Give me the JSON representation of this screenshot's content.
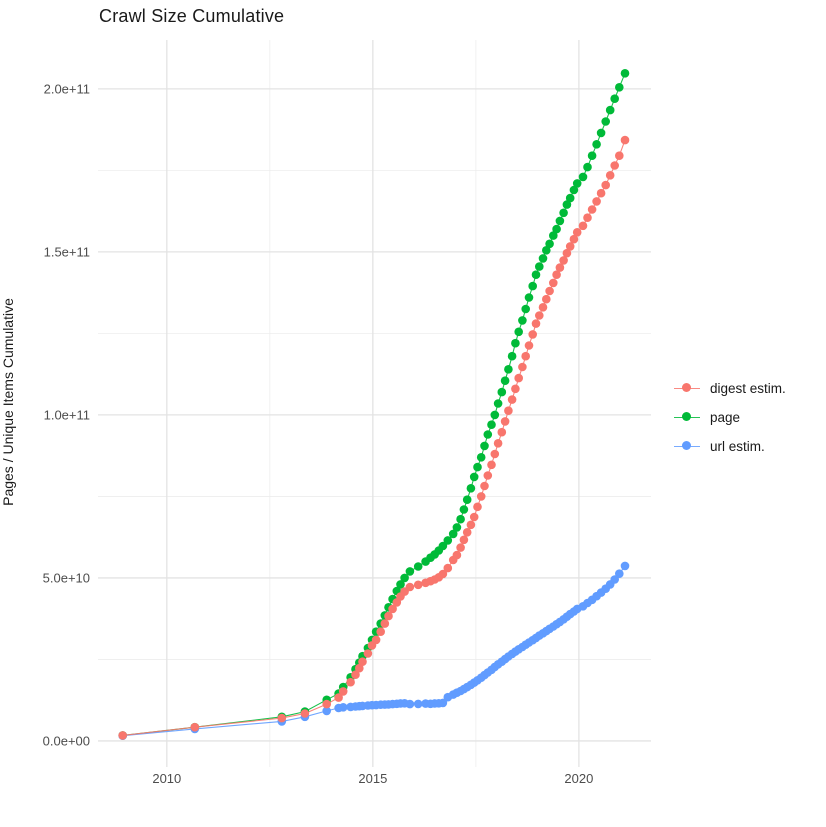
{
  "title": "Crawl Size Cumulative",
  "ylabel": "Pages / Unique Items Cumulative",
  "colors": {
    "digest": "#F8766D",
    "page": "#00BA38",
    "url": "#619CFF",
    "grid_major": "#E3E3E3",
    "grid_minor": "#EDEDED",
    "tick_text": "#4D4D4D",
    "panel_bg": "#FFFFFF"
  },
  "chart_data": {
    "type": "scatter",
    "title": "Crawl Size Cumulative",
    "xlabel": "",
    "ylabel": "Pages / Unique Items Cumulative",
    "grid": true,
    "legend_position": "right",
    "xlim": [
      2008.33,
      2021.75
    ],
    "ylim_e9": [
      -8.0,
      215.0
    ],
    "x_ticks": {
      "values": [
        2010,
        2015,
        2020
      ],
      "labels": [
        "2010",
        "2015",
        "2020"
      ]
    },
    "x_minor": [
      2012.5,
      2017.5
    ],
    "y_ticks": {
      "values_e9": [
        0,
        50,
        100,
        150,
        200
      ],
      "labels": [
        "0.0e+00",
        "5.0e+10",
        "1.0e+11",
        "1.5e+11",
        "2.0e+11"
      ]
    },
    "y_minor_e9": [
      25,
      75,
      125,
      175
    ],
    "x": [
      2008.93,
      2010.68,
      2012.79,
      2013.35,
      2013.88,
      2014.17,
      2014.28,
      2014.46,
      2014.58,
      2014.67,
      2014.75,
      2014.88,
      2014.98,
      2015.08,
      2015.19,
      2015.29,
      2015.38,
      2015.48,
      2015.58,
      2015.67,
      2015.77,
      2015.9,
      2016.1,
      2016.28,
      2016.4,
      2016.5,
      2016.6,
      2016.7,
      2016.82,
      2016.95,
      2017.04,
      2017.13,
      2017.21,
      2017.29,
      2017.38,
      2017.46,
      2017.54,
      2017.63,
      2017.71,
      2017.79,
      2017.88,
      2017.96,
      2018.04,
      2018.13,
      2018.21,
      2018.29,
      2018.38,
      2018.46,
      2018.54,
      2018.63,
      2018.71,
      2018.79,
      2018.88,
      2018.96,
      2019.04,
      2019.13,
      2019.21,
      2019.29,
      2019.38,
      2019.46,
      2019.54,
      2019.63,
      2019.71,
      2019.79,
      2019.88,
      2019.96,
      2020.1,
      2020.21,
      2020.32,
      2020.43,
      2020.54,
      2020.65,
      2020.76,
      2020.87,
      2020.98,
      2021.12
    ],
    "series": [
      {
        "name": "digest estim.",
        "color": "#F8766D",
        "values_e9": [
          1.7,
          4.2,
          7.0,
          8.4,
          11.3,
          13.3,
          15.2,
          18.0,
          20.3,
          22.3,
          24.3,
          26.8,
          29.3,
          31.0,
          33.5,
          36.0,
          38.3,
          40.5,
          42.5,
          44.3,
          45.8,
          47.2,
          47.9,
          48.5,
          49.0,
          49.5,
          50.2,
          51.2,
          53.0,
          55.5,
          57.0,
          59.3,
          61.7,
          64.0,
          66.3,
          68.7,
          71.8,
          75.0,
          78.2,
          81.4,
          84.7,
          88.0,
          91.3,
          94.7,
          98.0,
          101.3,
          104.7,
          108.0,
          111.3,
          114.7,
          118.0,
          121.3,
          124.7,
          128.0,
          130.5,
          133.0,
          135.5,
          138.0,
          140.5,
          143.0,
          145.2,
          147.4,
          149.6,
          151.7,
          153.9,
          156.0,
          158.0,
          160.5,
          163.0,
          165.5,
          168.0,
          170.5,
          173.5,
          176.5,
          179.5,
          184.3
        ]
      },
      {
        "name": "page",
        "color": "#00BA38",
        "values_e9": [
          1.7,
          4.2,
          7.4,
          9.0,
          12.6,
          14.5,
          16.5,
          19.5,
          22.0,
          24.0,
          26.0,
          28.5,
          31.0,
          33.5,
          36.0,
          38.5,
          41.0,
          43.5,
          46.0,
          48.0,
          50.0,
          52.0,
          53.5,
          55.0,
          56.2,
          57.2,
          58.4,
          59.8,
          61.5,
          63.5,
          65.5,
          68.0,
          71.0,
          74.0,
          77.5,
          81.0,
          84.0,
          87.0,
          90.5,
          94.0,
          97.0,
          100.0,
          103.5,
          107.0,
          110.5,
          114.0,
          118.0,
          122.0,
          125.5,
          129.0,
          132.5,
          136.0,
          139.5,
          143.0,
          145.5,
          148.0,
          150.5,
          152.5,
          155.0,
          157.0,
          159.5,
          162.0,
          164.5,
          166.5,
          169.0,
          171.0,
          173.0,
          176.0,
          179.5,
          183.0,
          186.5,
          190.0,
          193.5,
          197.0,
          200.5,
          204.8
        ]
      },
      {
        "name": "url estim.",
        "color": "#619CFF",
        "values_e9": [
          1.6,
          3.7,
          6.0,
          7.4,
          9.2,
          10.1,
          10.3,
          10.45,
          10.55,
          10.65,
          10.75,
          10.85,
          10.95,
          11.0,
          11.1,
          11.15,
          11.2,
          11.3,
          11.4,
          11.5,
          11.55,
          11.3,
          11.35,
          11.45,
          11.4,
          11.5,
          11.55,
          11.65,
          13.4,
          14.2,
          14.8,
          15.3,
          15.9,
          16.5,
          17.2,
          17.9,
          18.6,
          19.4,
          20.2,
          21.0,
          21.8,
          22.7,
          23.5,
          24.3,
          25.1,
          25.9,
          26.7,
          27.4,
          28.1,
          28.8,
          29.5,
          30.2,
          30.9,
          31.6,
          32.3,
          33.0,
          33.7,
          34.4,
          35.1,
          35.8,
          36.5,
          37.3,
          38.1,
          38.9,
          39.7,
          40.5,
          41.3,
          42.3,
          43.3,
          44.4,
          45.5,
          46.7,
          48.0,
          49.5,
          51.3,
          53.7
        ]
      }
    ]
  }
}
